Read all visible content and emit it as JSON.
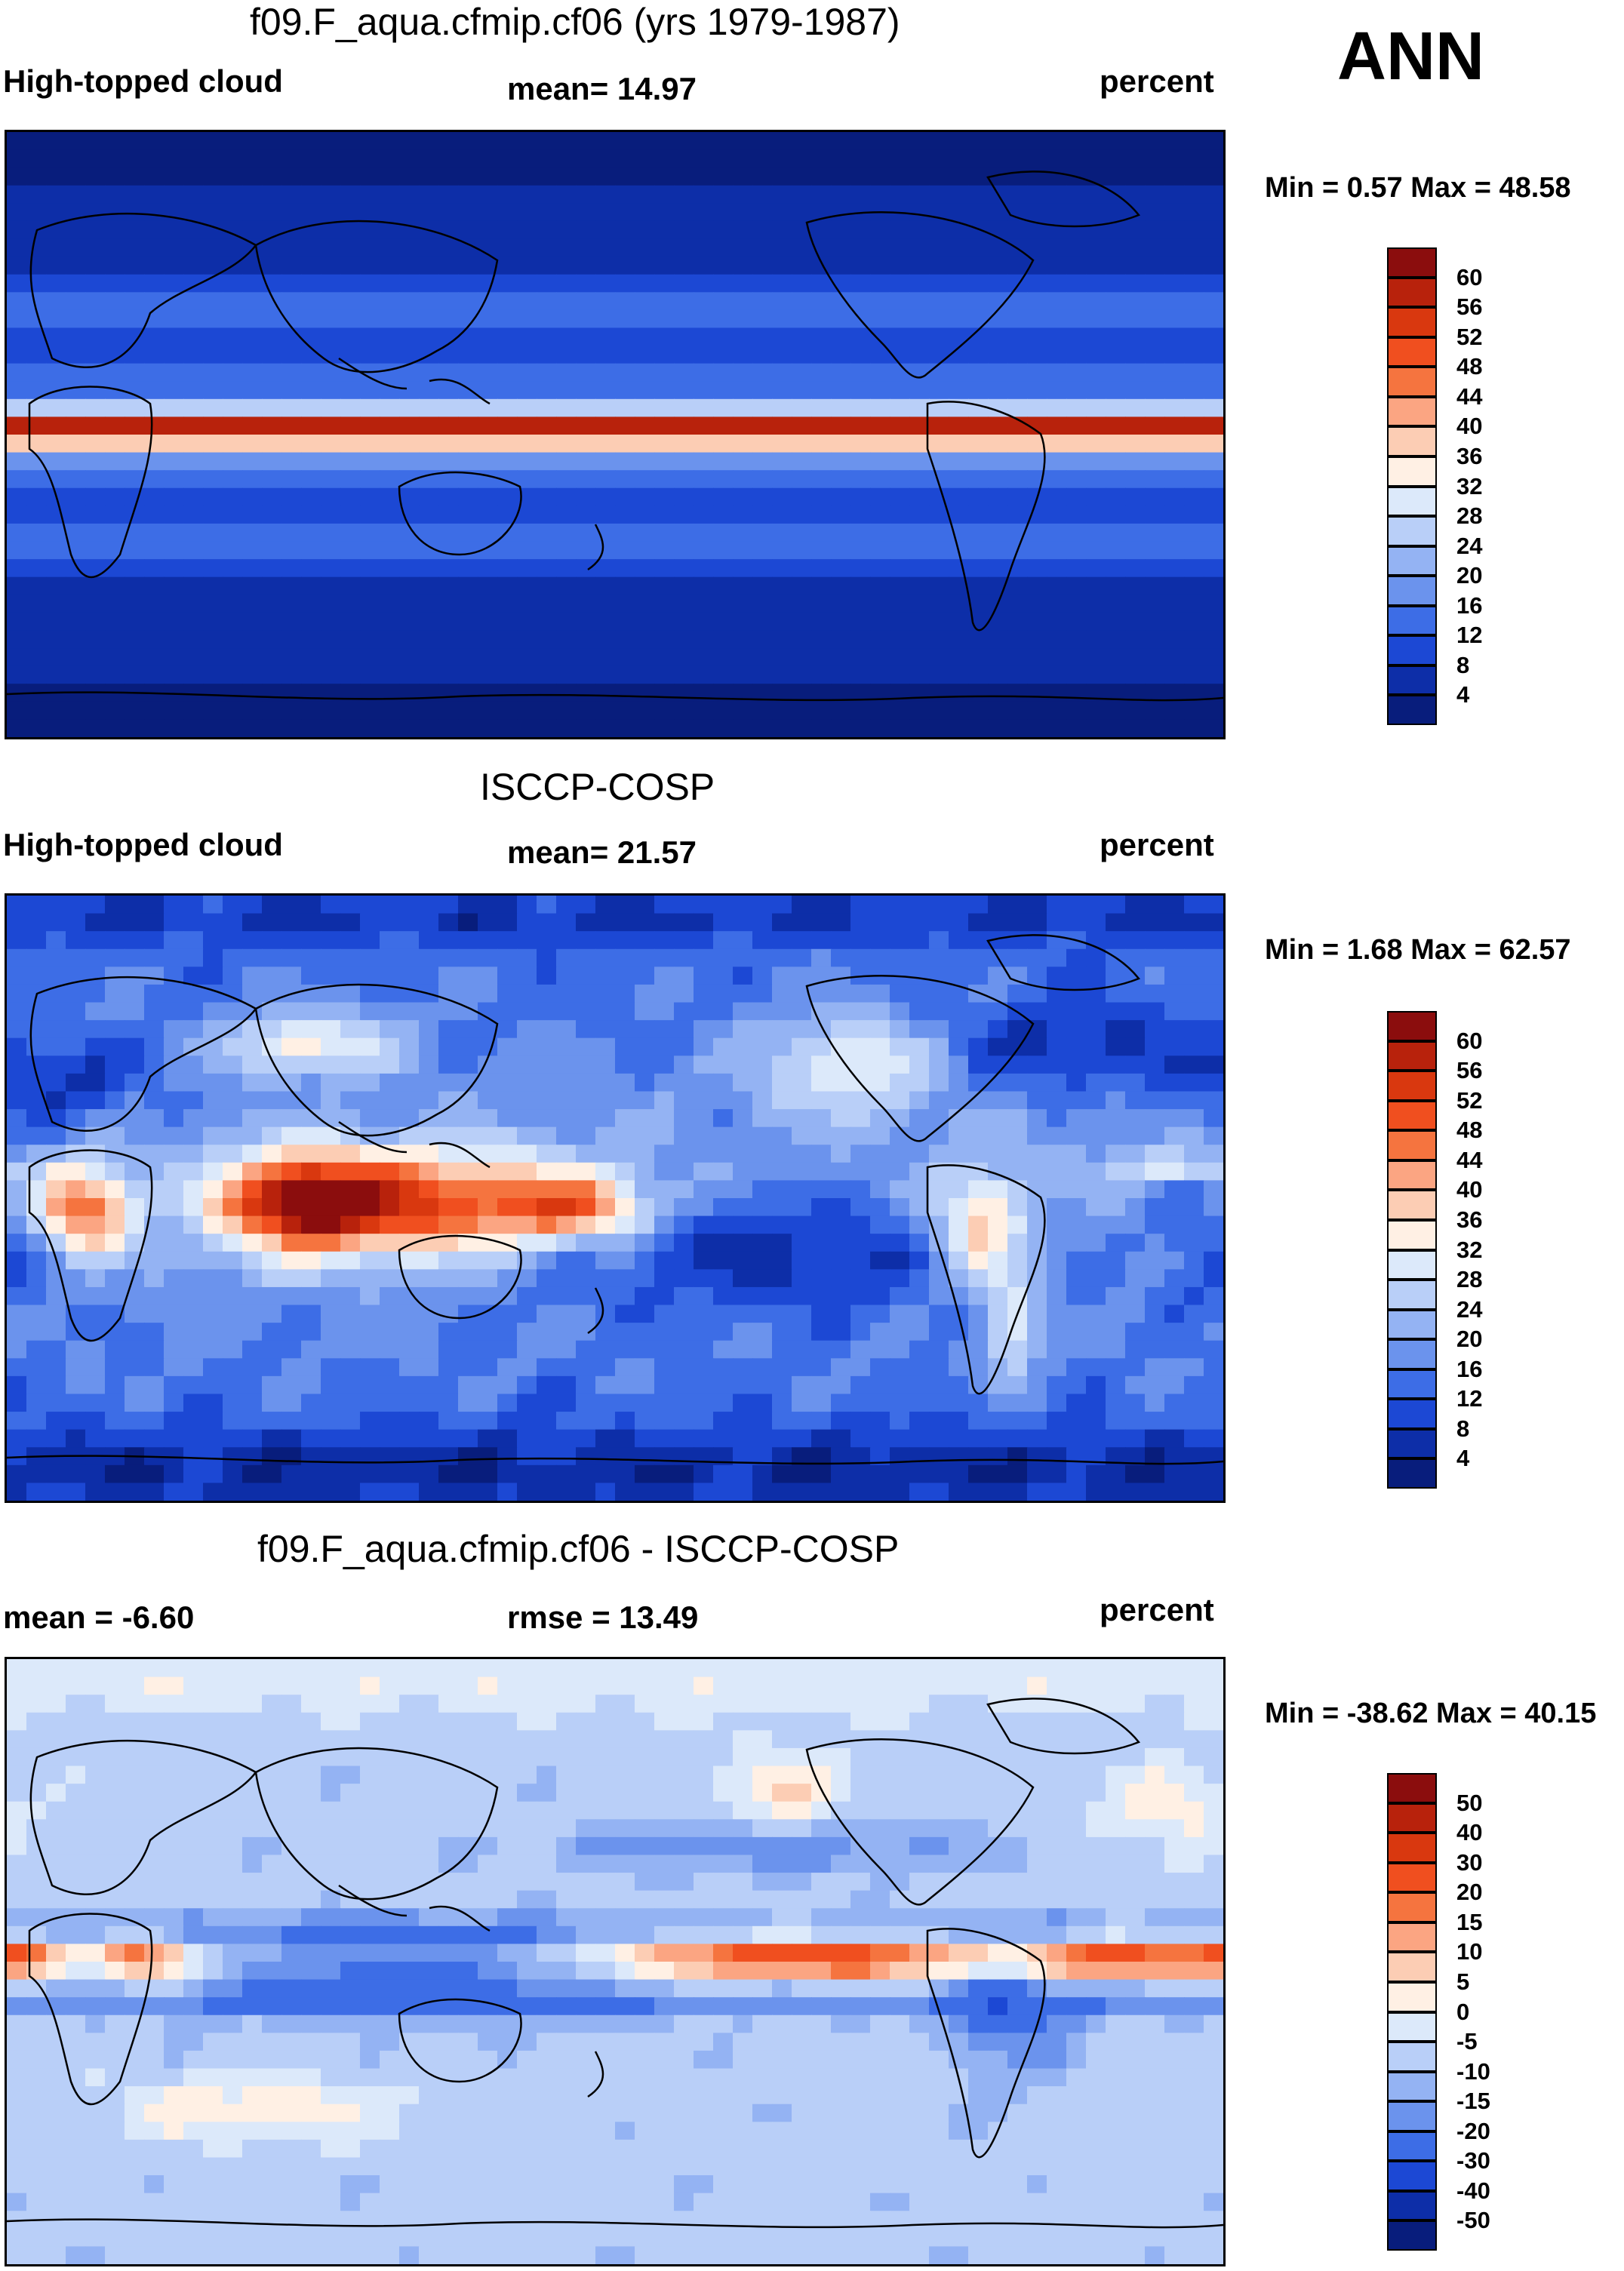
{
  "season_label": "ANN",
  "chart_data": [
    {
      "type": "contour-map",
      "title": "f09.F_aqua.cfmip.cf06 (yrs 1979-1987)",
      "variable": "High-topped cloud",
      "stat": "mean=  14.97",
      "units": "percent",
      "minmax": "Min =    0.57 Max =  48.58",
      "colorbar": {
        "labels": [
          "60",
          "56",
          "52",
          "48",
          "44",
          "40",
          "36",
          "32",
          "28",
          "24",
          "20",
          "16",
          "12",
          "8",
          "4"
        ],
        "colors": [
          "#8b0d0d",
          "#b8220c",
          "#d9380f",
          "#f04f1f",
          "#f5743f",
          "#fba582",
          "#fccdb4",
          "#fff0e4",
          "#dce9fa",
          "#b9cff8",
          "#94b3f3",
          "#6b93ed",
          "#3d6de6",
          "#1c48d4",
          "#0d2ea8",
          "#081d7c"
        ]
      },
      "pattern": "zonal-aquaplanet"
    },
    {
      "type": "contour-map",
      "title": "ISCCP-COSP",
      "variable": "High-topped cloud",
      "stat": "mean=  21.57",
      "units": "percent",
      "minmax": "Min =    1.68 Max =  62.57",
      "colorbar": {
        "labels": [
          "60",
          "56",
          "52",
          "48",
          "44",
          "40",
          "36",
          "32",
          "28",
          "24",
          "20",
          "16",
          "12",
          "8",
          "4"
        ],
        "colors": [
          "#8b0d0d",
          "#b8220c",
          "#d9380f",
          "#f04f1f",
          "#f5743f",
          "#fba582",
          "#fccdb4",
          "#fff0e4",
          "#dce9fa",
          "#b9cff8",
          "#94b3f3",
          "#6b93ed",
          "#3d6de6",
          "#1c48d4",
          "#0d2ea8",
          "#081d7c"
        ]
      },
      "pattern": "observed-isccp"
    },
    {
      "type": "contour-map",
      "title": "f09.F_aqua.cfmip.cf06 - ISCCP-COSP",
      "stat": "mean =  -6.60",
      "rmse": "rmse =  13.49",
      "units": "percent",
      "minmax": "Min = -38.62 Max =  40.15",
      "colorbar": {
        "labels": [
          "50",
          "40",
          "30",
          "20",
          "15",
          "10",
          "5",
          "0",
          "-5",
          "-10",
          "-15",
          "-20",
          "-30",
          "-40",
          "-50"
        ],
        "colors": [
          "#8b0d0d",
          "#b8220c",
          "#d9380f",
          "#f04f1f",
          "#f5743f",
          "#fba582",
          "#fccdb4",
          "#fff0e4",
          "#dce9fa",
          "#b9cff8",
          "#94b3f3",
          "#6b93ed",
          "#3d6de6",
          "#1c48d4",
          "#0d2ea8",
          "#081d7c"
        ]
      },
      "pattern": "difference"
    }
  ]
}
